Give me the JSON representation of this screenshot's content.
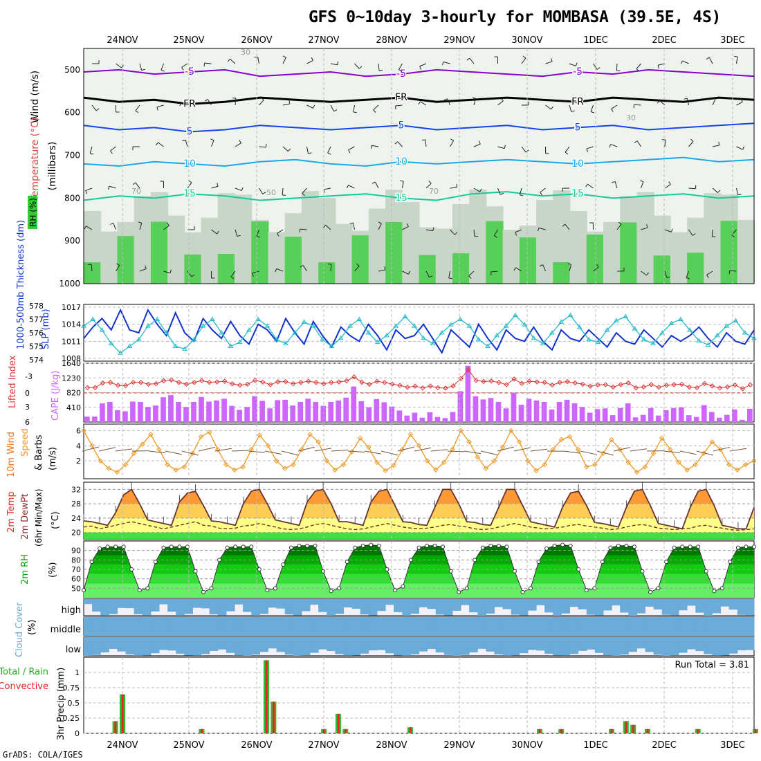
{
  "title": "GFS 0~10day 3-hourly for MOMBASA (39.5E, 4S)",
  "credit": "GrADS: COLA/IGES",
  "dates": [
    "24NOV",
    "25NOV",
    "26NOV",
    "27NOV",
    "28NOV",
    "29NOV",
    "30NOV",
    "1DEC",
    "2DEC",
    "3DEC"
  ],
  "colors": {
    "rh_green": "#33cc33",
    "cape": "#cc66ff",
    "temp": "#ff6600",
    "rh2m": "#00aa00",
    "cloud": "#6aabd8",
    "precip_total": "#33bb33",
    "precip_conv": "#ee2222",
    "slp": "#1133cc",
    "thick": "#22bbcc"
  },
  "panels": {
    "upper": {
      "label_wind": "Wind (m/s)",
      "label_temp": "Temperature (°C)",
      "label_rh": "RH (%)",
      "label_mb": "(millibars)",
      "levels": [
        "500",
        "600",
        "700",
        "800",
        "900",
        "1000"
      ],
      "contours": [
        {
          "label": "-5",
          "color": "#8800cc",
          "value": -5,
          "pressure": [
            505,
            500,
            510,
            505,
            500,
            515,
            510,
            505,
            515,
            510,
            500,
            505,
            510,
            515,
            505,
            510,
            500,
            505,
            510,
            515
          ]
        },
        {
          "label": "FR",
          "color": "#000000",
          "value": 0,
          "pressure": [
            565,
            575,
            570,
            580,
            575,
            565,
            570,
            575,
            570,
            565,
            575,
            570,
            565,
            570,
            575,
            565,
            570,
            575,
            565,
            570
          ]
        },
        {
          "label": "5",
          "color": "#1144ee",
          "value": 5,
          "pressure": [
            630,
            640,
            635,
            645,
            640,
            630,
            635,
            640,
            635,
            630,
            640,
            635,
            630,
            640,
            635,
            630,
            640,
            635,
            630,
            625
          ]
        },
        {
          "label": "10",
          "color": "#11aaee",
          "value": 10,
          "pressure": [
            720,
            725,
            715,
            720,
            725,
            715,
            710,
            720,
            725,
            715,
            720,
            715,
            710,
            715,
            720,
            715,
            710,
            705,
            715,
            710
          ]
        },
        {
          "label": "15",
          "color": "#11cc99",
          "value": 15,
          "pressure": [
            805,
            795,
            800,
            790,
            795,
            805,
            800,
            795,
            790,
            800,
            805,
            790,
            785,
            795,
            790,
            800,
            795,
            790,
            800,
            795
          ]
        }
      ],
      "rh_text_labels": [
        "30",
        "70",
        "50",
        "30",
        "70"
      ]
    },
    "slp": {
      "label_thick": "1000-500mb Thickness (dm)",
      "label_slp": "SLP (mb)",
      "left_ticks": [
        "574",
        "575",
        "576",
        "577",
        "578"
      ],
      "right_ticks": [
        "1008",
        "1011",
        "1014",
        "1017"
      ],
      "slp_series": [
        1011.5,
        1013.5,
        1015,
        1013,
        1016.5,
        1013,
        1012.5,
        1016.5,
        1014,
        1012,
        1016,
        1012.5,
        1011,
        1015,
        1013,
        1011.5,
        1014.5,
        1012,
        1010.5,
        1014,
        1013,
        1011,
        1015,
        1012.5,
        1010.5,
        1014.5,
        1012,
        1010,
        1013.5,
        1012,
        1011,
        1014,
        1012,
        1009.5,
        1013,
        1011.5,
        1012,
        1014,
        1011.5,
        1009,
        1013,
        1011.5,
        1010,
        1014,
        1011.5,
        1009.5,
        1013,
        1011.5,
        1011,
        1013.5,
        1011,
        1009.5,
        1013,
        1011.5,
        1011,
        1013,
        1011.5,
        1010,
        1012.5,
        1011,
        1010.5,
        1013,
        1011.5,
        1010,
        1012,
        1011,
        1012,
        1013.5,
        1011.5,
        1010,
        1012.5,
        1011,
        1010.5,
        1013
      ],
      "thick_series": [
        576.5,
        577,
        576.2,
        575.2,
        574.5,
        575,
        575.5,
        576.5,
        577,
        576,
        575,
        574.8,
        575.5,
        576.5,
        577,
        576,
        575,
        575.3,
        576.2,
        577,
        576.5,
        575.5,
        575.2,
        576,
        576.8,
        576.5,
        575.5,
        575,
        575.6,
        576.5,
        577,
        576,
        575.3,
        575.8,
        576.5,
        577.2,
        576.5,
        575.6,
        575.2,
        576,
        576.6,
        577,
        576.5,
        575.5,
        575,
        575.8,
        576.5,
        577.3,
        576.6,
        575.6,
        575.2,
        576,
        576.8,
        577.3,
        576.4,
        575.5,
        575.3,
        576.2,
        576.9,
        577.2,
        576.3,
        575.5,
        575.2,
        576,
        576.7,
        577,
        576.2,
        575.4,
        575.1,
        575.8,
        576.5,
        576.9,
        576,
        575.6
      ]
    },
    "cape": {
      "label_li": "Lifted Index",
      "label_cape": "CAPE (J/kg)",
      "left_ticks": [
        "-3",
        "0",
        "3",
        "6"
      ],
      "right_ticks": [
        "410",
        "820",
        "1230",
        "1640"
      ],
      "cape_series": [
        150,
        150,
        520,
        560,
        330,
        300,
        570,
        560,
        420,
        460,
        690,
        750,
        560,
        420,
        560,
        700,
        570,
        600,
        650,
        450,
        340,
        420,
        720,
        590,
        380,
        610,
        620,
        460,
        560,
        650,
        560,
        450,
        560,
        600,
        680,
        990,
        580,
        410,
        640,
        550,
        430,
        320,
        180,
        260,
        120,
        270,
        140,
        110,
        280,
        860,
        1570,
        720,
        630,
        670,
        560,
        380,
        820,
        480,
        650,
        600,
        560,
        350,
        560,
        620,
        520,
        420,
        260,
        360,
        380,
        190,
        390,
        520,
        130,
        200,
        390,
        180,
        330,
        390,
        410,
        190,
        140,
        470,
        280,
        120,
        200,
        350,
        60,
        370
      ]
    },
    "wind10": {
      "label_main": "10m Wind",
      "label_speed": "Speed",
      "label_barbs": "& Barbs",
      "label_units": "(m/s)",
      "ticks": [
        "2",
        "4",
        "6"
      ],
      "speed_series": [
        6,
        4,
        2,
        1,
        0.5,
        1.5,
        3,
        4.2,
        5.5,
        3.5,
        1.5,
        0.8,
        1.2,
        3,
        5.2,
        5.8,
        3.5,
        1.5,
        0.8,
        1.2,
        3.5,
        5.4,
        4,
        2,
        1,
        1.5,
        3.5,
        5.5,
        4.5,
        2,
        0.8,
        1.5,
        3.2,
        5,
        3.8,
        1.8,
        0.7,
        1.4,
        3.5,
        5.5,
        4,
        2,
        0.8,
        1.8,
        3.5,
        6,
        4.5,
        2.5,
        1,
        2,
        3.8,
        6,
        4.5,
        2,
        0.7,
        1.5,
        3.5,
        4.8,
        5.2,
        3.5,
        1.2,
        1.5,
        3,
        4.8,
        3.5,
        1.8,
        0.5,
        1.2,
        3,
        5,
        3.5,
        1.8,
        0.8,
        1.5,
        3,
        4.5,
        3.5,
        1.5,
        0.8,
        1.5,
        2
      ]
    },
    "temp2m": {
      "label_temp": "2m Temp",
      "label_dew": "2m DewPt",
      "label_minmax": "(6hr Min/Max)",
      "label_units": "(°C)",
      "ticks": [
        "20",
        "24",
        "28",
        "32"
      ],
      "temp_series": [
        23.2,
        23,
        22.5,
        22,
        25.5,
        30.5,
        32,
        28,
        23.5,
        23,
        22.5,
        22,
        28.5,
        31,
        31.5,
        27.5,
        23.2,
        23,
        22.5,
        22,
        28,
        31.5,
        32,
        28,
        23.5,
        23,
        22.5,
        22,
        28.5,
        31.5,
        32,
        28,
        23,
        23,
        22.5,
        22,
        28.5,
        31.5,
        32,
        27.5,
        23,
        22.8,
        22.2,
        22,
        27,
        32,
        32,
        28,
        23,
        22.8,
        22.2,
        22,
        27,
        32,
        32,
        27.5,
        23,
        22.5,
        22,
        21.5,
        27,
        31,
        31.5,
        27.5,
        22.8,
        22.5,
        22,
        21.5,
        27,
        31.5,
        32,
        27.5,
        22.5,
        22,
        21.5,
        21,
        27,
        31.5,
        32,
        27.5,
        22,
        21.5,
        21,
        21,
        27
      ],
      "dew_series": [
        21.5,
        21.8,
        21,
        21.5,
        22,
        22.5,
        23,
        22.5,
        22,
        21.5,
        21,
        21.5,
        22,
        22.5,
        23,
        22,
        21.8,
        21.2,
        21,
        21.2,
        21.8,
        22,
        22.5,
        22,
        21.5,
        21,
        20.8,
        21,
        21.5,
        22.2,
        22.5,
        22,
        21.5,
        21,
        20.8,
        21,
        21.5,
        22,
        22.5,
        22,
        21.5,
        21.2,
        21,
        21.2,
        21.5,
        22,
        22.2,
        21.8,
        21.5,
        21,
        20.8,
        21,
        21.5,
        22,
        22.5,
        22,
        21.5,
        21.2,
        21,
        21.2,
        21.5,
        22,
        22.2,
        21.8,
        21.5,
        21.2,
        20.8,
        21,
        21.5,
        22,
        22.2,
        21.8,
        21.2,
        21,
        20.8,
        21,
        21.2,
        21.8,
        22,
        21.5,
        21.2,
        20.8,
        20.6,
        20.8,
        21
      ]
    },
    "rh2m": {
      "label": "2m RH",
      "label_units": "(%)",
      "ticks": [
        "50",
        "60",
        "70",
        "80",
        "90"
      ],
      "rh_series": [
        48,
        78,
        92,
        94,
        94,
        94,
        70,
        48,
        50,
        78,
        93,
        94,
        94,
        94,
        68,
        46,
        50,
        80,
        93,
        94,
        94,
        94,
        70,
        48,
        50,
        75,
        93,
        95,
        95,
        95,
        68,
        47,
        50,
        78,
        93,
        95,
        96,
        95,
        70,
        48,
        52,
        80,
        93,
        95,
        95,
        94,
        68,
        46,
        50,
        80,
        93,
        95,
        95,
        94,
        68,
        46,
        50,
        78,
        92,
        95,
        96,
        95,
        70,
        48,
        50,
        78,
        93,
        95,
        95,
        94,
        68,
        46,
        50,
        78,
        93,
        94,
        94,
        94,
        68,
        47,
        50,
        78,
        93,
        94,
        94
      ]
    },
    "cloud": {
      "label": "Cloud Cover",
      "label_units": "(%)",
      "tiers": [
        "high",
        "middle",
        "low"
      ]
    },
    "precip": {
      "label_total": "Total / Rain",
      "label_conv": "Convective",
      "label_axis": "3hr Precip (mm)",
      "ticks": [
        "0",
        "0.25",
        "0.5",
        "0.75",
        "1"
      ],
      "run_total": "Run Total = 3.81",
      "bars": [
        [
          4,
          0.2
        ],
        [
          5,
          0.64
        ],
        [
          16,
          0.07
        ],
        [
          25,
          1.2
        ],
        [
          26,
          0.52
        ],
        [
          33,
          0.07
        ],
        [
          35,
          0.32
        ],
        [
          36,
          0.07
        ],
        [
          45,
          0.1
        ],
        [
          63,
          0.07
        ],
        [
          66,
          0.07
        ],
        [
          73,
          0.07
        ],
        [
          75,
          0.2
        ],
        [
          76,
          0.14
        ],
        [
          78,
          0.07
        ],
        [
          85,
          0.07
        ],
        [
          93,
          0.07
        ]
      ]
    }
  }
}
